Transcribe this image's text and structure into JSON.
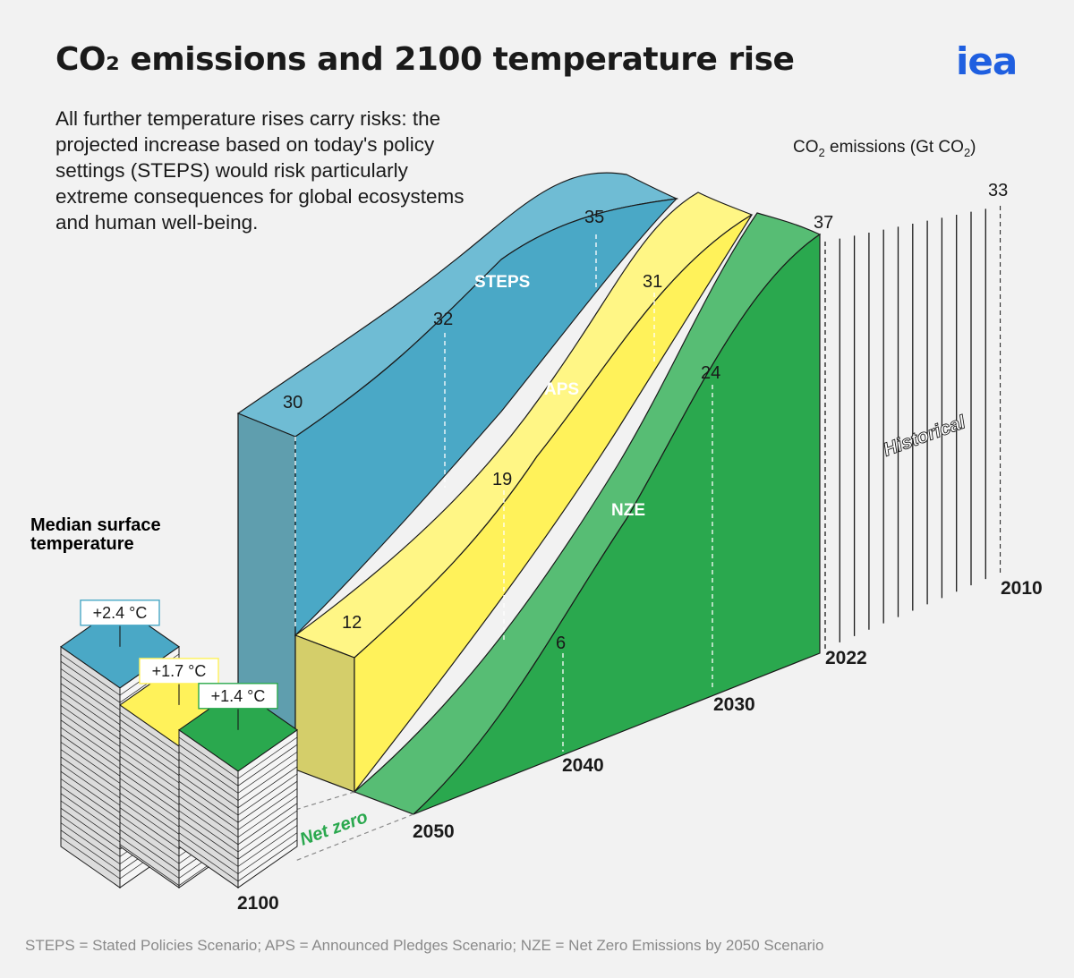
{
  "header": {
    "title": "CO₂ emissions and 2100 temperature rise",
    "subtitle": "All further temperature rises carry risks: the projected increase based on today's policy settings (STEPS) would risk particularly extreme consequences for global ecosystems and human well-being.",
    "logo": "iea",
    "footnote": "STEPS = Stated Policies Scenario; APS = Announced Pledges Scenario; NZE = Net Zero Emissions by 2050 Scenario"
  },
  "colors": {
    "steps": "#4aa8c6",
    "aps": "#fff25a",
    "nze": "#2aa84e",
    "logo": "#1f5fe0",
    "net_zero_label": "#2aa84e"
  },
  "chart_data": [
    {
      "type": "area",
      "ylabel": "CO2 emissions (Gt CO2)",
      "ylabel_main": "CO",
      "ylabel_sub": "2",
      "ylabel_tail": " emissions (Gt CO",
      "ylabel_close": ")",
      "x": [
        "2022",
        "2030",
        "2040",
        "2050"
      ],
      "series": [
        {
          "name": "STEPS",
          "values": [
            37,
            35,
            32,
            30
          ]
        },
        {
          "name": "APS",
          "values": [
            37,
            31,
            19,
            12
          ]
        },
        {
          "name": "NZE",
          "values": [
            37,
            24,
            6,
            0
          ]
        }
      ],
      "historical": {
        "label": "Historical",
        "x": [
          "2010",
          "2022"
        ],
        "values": [
          33,
          37
        ]
      },
      "annotation": "Net zero",
      "year_labels": [
        "2010",
        "2022",
        "2030",
        "2040",
        "2050",
        "2100"
      ]
    },
    {
      "type": "bar",
      "title": "Median surface temperature",
      "categories": [
        "STEPS",
        "APS",
        "NZE"
      ],
      "values": [
        2.4,
        1.7,
        1.4
      ],
      "labels": [
        "+2.4 °C",
        "+1.7 °C",
        "+1.4 °C"
      ]
    }
  ]
}
